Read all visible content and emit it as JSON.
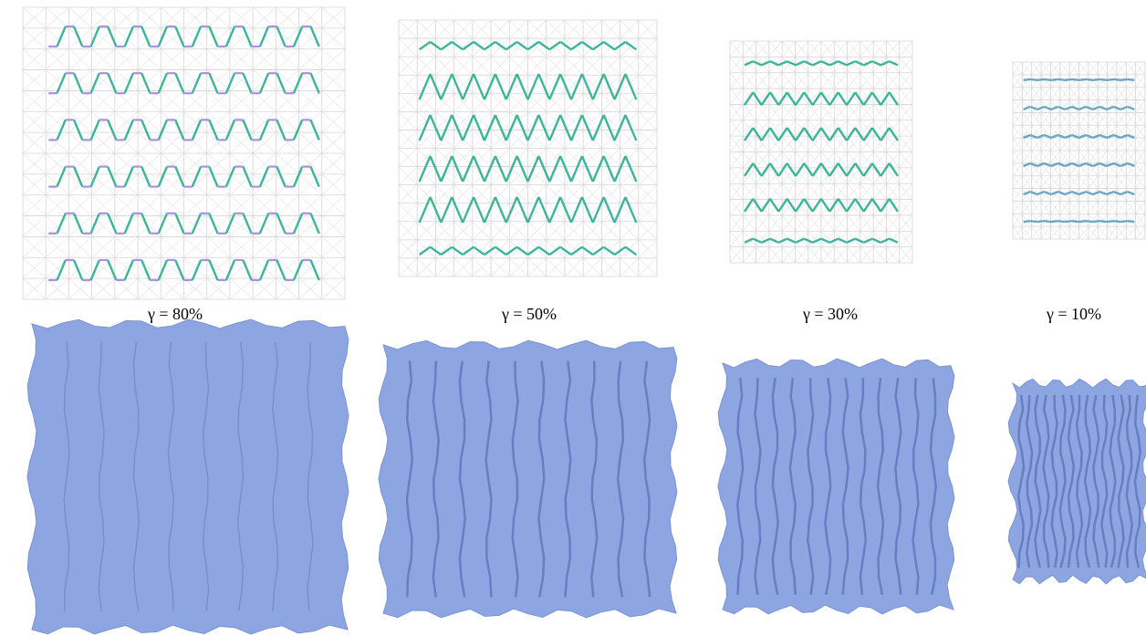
{
  "panels": [
    {
      "label": "γ = 80%"
    },
    {
      "label": "γ = 50%"
    },
    {
      "label": "γ = 30%"
    },
    {
      "label": "γ = 10%"
    }
  ]
}
